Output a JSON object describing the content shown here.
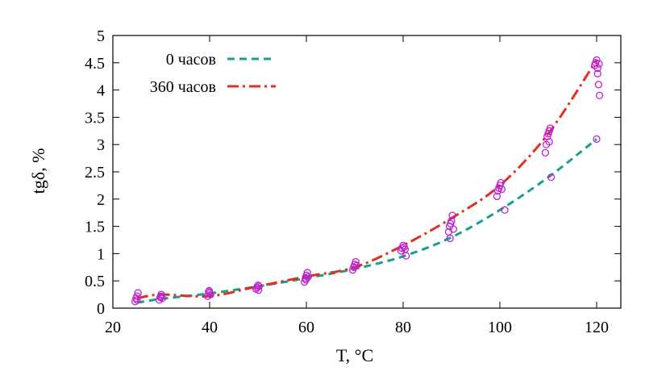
{
  "chart_data": {
    "type": "line",
    "xlabel": "T, °C",
    "ylabel": "tgδ, %",
    "xlim": [
      20,
      125
    ],
    "ylim": [
      0,
      5
    ],
    "xticks": [
      20,
      40,
      60,
      80,
      100,
      120
    ],
    "yticks": [
      0,
      0.5,
      1,
      1.5,
      2,
      2.5,
      3,
      3.5,
      4,
      4.5,
      5
    ],
    "ytick_labels": [
      "0",
      "0.5",
      "1",
      "1.5",
      "2",
      "2.5",
      "3",
      "3.5",
      "4",
      "4.5",
      "5"
    ],
    "grid": false,
    "legend_position": "top-left",
    "series": [
      {
        "name": "0 часов",
        "style": "dashed",
        "color": "#1a9e8f",
        "x": [
          25,
          30,
          40,
          50,
          60,
          70,
          80,
          90,
          100,
          110,
          120
        ],
        "y": [
          0.1,
          0.17,
          0.27,
          0.4,
          0.55,
          0.72,
          0.95,
          1.3,
          1.8,
          2.4,
          3.1
        ]
      },
      {
        "name": "360 часов",
        "style": "dash-dot",
        "color": "#e0301e",
        "x": [
          25,
          30,
          40,
          50,
          60,
          70,
          80,
          90,
          100,
          110,
          120
        ],
        "y": [
          0.18,
          0.25,
          0.22,
          0.4,
          0.58,
          0.75,
          1.15,
          1.65,
          2.25,
          3.2,
          4.55
        ]
      }
    ],
    "scatter": {
      "color": "#c020d0",
      "marker": "circle",
      "points": [
        [
          24.6,
          0.12
        ],
        [
          24.8,
          0.18
        ],
        [
          25.0,
          0.22
        ],
        [
          25.2,
          0.28
        ],
        [
          25.0,
          0.15
        ],
        [
          29.6,
          0.15
        ],
        [
          29.8,
          0.2
        ],
        [
          30.0,
          0.25
        ],
        [
          30.2,
          0.18
        ],
        [
          29.9,
          0.22
        ],
        [
          39.6,
          0.22
        ],
        [
          39.8,
          0.3
        ],
        [
          40.0,
          0.28
        ],
        [
          40.2,
          0.25
        ],
        [
          39.9,
          0.32
        ],
        [
          49.6,
          0.35
        ],
        [
          49.8,
          0.38
        ],
        [
          50.0,
          0.42
        ],
        [
          50.2,
          0.4
        ],
        [
          50.1,
          0.33
        ],
        [
          59.6,
          0.48
        ],
        [
          59.8,
          0.55
        ],
        [
          60.0,
          0.6
        ],
        [
          60.2,
          0.65
        ],
        [
          59.9,
          0.52
        ],
        [
          60.3,
          0.57
        ],
        [
          69.6,
          0.7
        ],
        [
          69.8,
          0.75
        ],
        [
          70.0,
          0.8
        ],
        [
          70.2,
          0.85
        ],
        [
          70.4,
          0.78
        ],
        [
          79.6,
          1.05
        ],
        [
          79.8,
          1.1
        ],
        [
          80.0,
          1.15
        ],
        [
          80.2,
          1.12
        ],
        [
          80.4,
          1.08
        ],
        [
          80.6,
          0.96
        ],
        [
          89.4,
          1.4
        ],
        [
          89.6,
          1.5
        ],
        [
          89.8,
          1.55
        ],
        [
          90.0,
          1.6
        ],
        [
          90.2,
          1.7
        ],
        [
          90.4,
          1.45
        ],
        [
          89.7,
          1.28
        ],
        [
          99.4,
          2.05
        ],
        [
          99.6,
          2.15
        ],
        [
          99.8,
          2.2
        ],
        [
          100.0,
          2.25
        ],
        [
          100.2,
          2.3
        ],
        [
          100.4,
          2.18
        ],
        [
          101.0,
          1.8
        ],
        [
          109.4,
          2.85
        ],
        [
          109.6,
          3.0
        ],
        [
          109.8,
          3.15
        ],
        [
          110.0,
          3.2
        ],
        [
          110.2,
          3.25
        ],
        [
          110.4,
          3.3
        ],
        [
          110.6,
          2.4
        ],
        [
          110.2,
          3.05
        ],
        [
          119.6,
          4.45
        ],
        [
          119.8,
          4.5
        ],
        [
          120.0,
          4.55
        ],
        [
          120.2,
          4.4
        ],
        [
          120.4,
          4.1
        ],
        [
          120.6,
          3.9
        ],
        [
          120.2,
          4.3
        ],
        [
          120.0,
          3.1
        ],
        [
          120.5,
          4.48
        ]
      ]
    }
  }
}
